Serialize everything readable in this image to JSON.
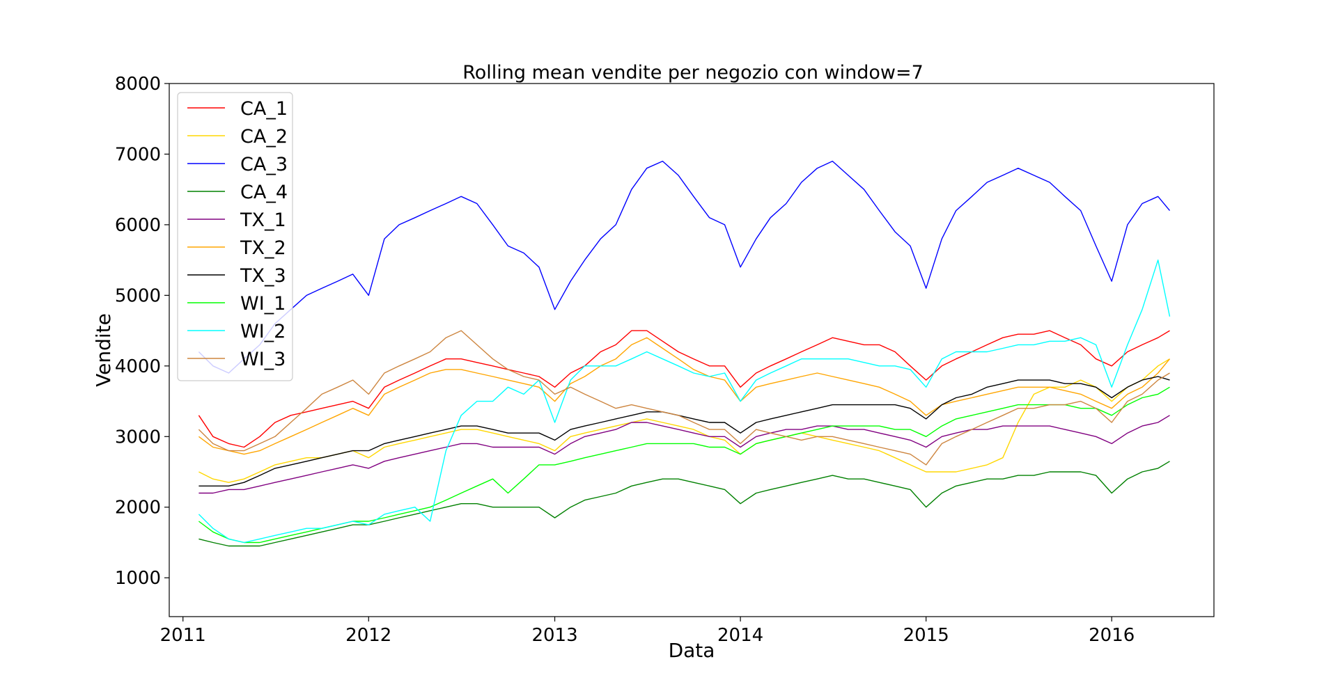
{
  "chart_data": {
    "type": "line",
    "title": "Rolling mean vendite per negozio con window=7",
    "xlabel": "Data",
    "ylabel": "Vendite",
    "xlim": [
      "2010-12-05",
      "2016-07-20"
    ],
    "ylim": [
      450,
      8000
    ],
    "x_ticks": [
      "2011",
      "2012",
      "2013",
      "2014",
      "2015",
      "2016"
    ],
    "y_ticks": [
      1000,
      2000,
      3000,
      4000,
      5000,
      6000,
      7000,
      8000
    ],
    "legend_position": "upper-left",
    "grid": false,
    "x_dates": [
      "2011-02-01",
      "2011-03-01",
      "2011-04-01",
      "2011-05-01",
      "2011-06-01",
      "2011-07-01",
      "2011-08-01",
      "2011-09-01",
      "2011-10-01",
      "2011-11-01",
      "2011-12-01",
      "2012-01-01",
      "2012-02-01",
      "2012-03-01",
      "2012-04-01",
      "2012-05-01",
      "2012-06-01",
      "2012-07-01",
      "2012-08-01",
      "2012-09-01",
      "2012-10-01",
      "2012-11-01",
      "2012-12-01",
      "2013-01-01",
      "2013-02-01",
      "2013-03-01",
      "2013-04-01",
      "2013-05-01",
      "2013-06-01",
      "2013-07-01",
      "2013-08-01",
      "2013-09-01",
      "2013-10-01",
      "2013-11-01",
      "2013-12-01",
      "2014-01-01",
      "2014-02-01",
      "2014-03-01",
      "2014-04-01",
      "2014-05-01",
      "2014-06-01",
      "2014-07-01",
      "2014-08-01",
      "2014-09-01",
      "2014-10-01",
      "2014-11-01",
      "2014-12-01",
      "2015-01-01",
      "2015-02-01",
      "2015-03-01",
      "2015-04-01",
      "2015-05-01",
      "2015-06-01",
      "2015-07-01",
      "2015-08-01",
      "2015-09-01",
      "2015-10-01",
      "2015-11-01",
      "2015-12-01",
      "2016-01-01",
      "2016-02-01",
      "2016-03-01",
      "2016-04-01",
      "2016-04-24"
    ],
    "series": [
      {
        "name": "CA_1",
        "color": "#ff0000",
        "values": [
          3300,
          3000,
          2900,
          2850,
          3000,
          3200,
          3300,
          3350,
          3400,
          3450,
          3500,
          3400,
          3700,
          3800,
          3900,
          4000,
          4100,
          4100,
          4050,
          4000,
          3950,
          3900,
          3850,
          3700,
          3900,
          4000,
          4200,
          4300,
          4500,
          4500,
          4350,
          4200,
          4100,
          4000,
          4000,
          3700,
          3900,
          4000,
          4100,
          4200,
          4300,
          4400,
          4350,
          4300,
          4300,
          4200,
          4000,
          3800,
          4000,
          4100,
          4200,
          4300,
          4400,
          4450,
          4450,
          4500,
          4400,
          4300,
          4100,
          4000,
          4200,
          4300,
          4400,
          4500
        ]
      },
      {
        "name": "CA_2",
        "color": "#ffd700",
        "values": [
          2500,
          2400,
          2350,
          2400,
          2500,
          2600,
          2650,
          2700,
          2700,
          2750,
          2800,
          2700,
          2850,
          2900,
          2950,
          3000,
          3050,
          3100,
          3100,
          3050,
          3000,
          2950,
          2900,
          2800,
          3000,
          3050,
          3100,
          3150,
          3200,
          3250,
          3200,
          3150,
          3100,
          3000,
          2950,
          2750,
          2900,
          2950,
          3000,
          3050,
          3000,
          2950,
          2900,
          2850,
          2800,
          2700,
          2600,
          2500,
          2500,
          2500,
          2550,
          2600,
          2700,
          3200,
          3600,
          3700,
          3700,
          3800,
          3700,
          3500,
          3700,
          3800,
          4000,
          4100
        ]
      },
      {
        "name": "CA_3",
        "color": "#0000ff",
        "values": [
          4200,
          4000,
          3900,
          4100,
          4300,
          4600,
          4800,
          5000,
          5100,
          5200,
          5300,
          5000,
          5800,
          6000,
          6100,
          6200,
          6300,
          6400,
          6300,
          6000,
          5700,
          5600,
          5400,
          4800,
          5200,
          5500,
          5800,
          6000,
          6500,
          6800,
          6900,
          6700,
          6400,
          6100,
          6000,
          5400,
          5800,
          6100,
          6300,
          6600,
          6800,
          6900,
          6700,
          6500,
          6200,
          5900,
          5700,
          5100,
          5800,
          6200,
          6400,
          6600,
          6700,
          6800,
          6700,
          6600,
          6400,
          6200,
          5700,
          5200,
          6000,
          6300,
          6400,
          6200
        ]
      },
      {
        "name": "CA_4",
        "color": "#008000",
        "values": [
          1550,
          1500,
          1450,
          1450,
          1450,
          1500,
          1550,
          1600,
          1650,
          1700,
          1750,
          1750,
          1800,
          1850,
          1900,
          1950,
          2000,
          2050,
          2050,
          2000,
          2000,
          2000,
          2000,
          1850,
          2000,
          2100,
          2150,
          2200,
          2300,
          2350,
          2400,
          2400,
          2350,
          2300,
          2250,
          2050,
          2200,
          2250,
          2300,
          2350,
          2400,
          2450,
          2400,
          2400,
          2350,
          2300,
          2250,
          2000,
          2200,
          2300,
          2350,
          2400,
          2400,
          2450,
          2450,
          2500,
          2500,
          2500,
          2450,
          2200,
          2400,
          2500,
          2550,
          2650
        ]
      },
      {
        "name": "TX_1",
        "color": "#800080",
        "values": [
          2200,
          2200,
          2250,
          2250,
          2300,
          2350,
          2400,
          2450,
          2500,
          2550,
          2600,
          2550,
          2650,
          2700,
          2750,
          2800,
          2850,
          2900,
          2900,
          2850,
          2850,
          2850,
          2850,
          2750,
          2900,
          3000,
          3050,
          3100,
          3200,
          3200,
          3150,
          3100,
          3050,
          3000,
          3000,
          2850,
          3000,
          3050,
          3100,
          3100,
          3150,
          3150,
          3100,
          3100,
          3050,
          3000,
          2950,
          2850,
          3000,
          3050,
          3100,
          3100,
          3150,
          3150,
          3150,
          3150,
          3100,
          3050,
          3000,
          2900,
          3050,
          3150,
          3200,
          3300
        ]
      },
      {
        "name": "TX_2",
        "color": "#ffa500",
        "values": [
          3000,
          2850,
          2800,
          2750,
          2800,
          2900,
          3000,
          3100,
          3200,
          3300,
          3400,
          3300,
          3600,
          3700,
          3800,
          3900,
          3950,
          3950,
          3900,
          3850,
          3800,
          3750,
          3700,
          3500,
          3750,
          3850,
          4000,
          4100,
          4300,
          4400,
          4250,
          4100,
          3950,
          3850,
          3800,
          3500,
          3700,
          3750,
          3800,
          3850,
          3900,
          3850,
          3800,
          3750,
          3700,
          3600,
          3500,
          3300,
          3450,
          3500,
          3550,
          3600,
          3650,
          3700,
          3700,
          3700,
          3650,
          3600,
          3500,
          3400,
          3600,
          3700,
          3900,
          4100
        ]
      },
      {
        "name": "TX_3",
        "color": "#000000",
        "values": [
          2300,
          2300,
          2300,
          2350,
          2450,
          2550,
          2600,
          2650,
          2700,
          2750,
          2800,
          2800,
          2900,
          2950,
          3000,
          3050,
          3100,
          3150,
          3150,
          3100,
          3050,
          3050,
          3050,
          2950,
          3100,
          3150,
          3200,
          3250,
          3300,
          3350,
          3350,
          3300,
          3250,
          3200,
          3200,
          3050,
          3200,
          3250,
          3300,
          3350,
          3400,
          3450,
          3450,
          3450,
          3450,
          3450,
          3400,
          3250,
          3450,
          3550,
          3600,
          3700,
          3750,
          3800,
          3800,
          3800,
          3750,
          3750,
          3700,
          3550,
          3700,
          3800,
          3850,
          3800
        ]
      },
      {
        "name": "WI_1",
        "color": "#00ff00",
        "values": [
          1800,
          1650,
          1550,
          1500,
          1500,
          1550,
          1600,
          1650,
          1700,
          1750,
          1800,
          1800,
          1850,
          1900,
          1950,
          2000,
          2100,
          2200,
          2300,
          2400,
          2200,
          2400,
          2600,
          2600,
          2650,
          2700,
          2750,
          2800,
          2850,
          2900,
          2900,
          2900,
          2900,
          2850,
          2850,
          2750,
          2900,
          2950,
          3000,
          3050,
          3100,
          3150,
          3150,
          3150,
          3150,
          3100,
          3100,
          3000,
          3150,
          3250,
          3300,
          3350,
          3400,
          3450,
          3450,
          3450,
          3450,
          3400,
          3400,
          3300,
          3450,
          3550,
          3600,
          3700
        ]
      },
      {
        "name": "WI_2",
        "color": "#00ffff",
        "values": [
          1900,
          1700,
          1550,
          1500,
          1550,
          1600,
          1650,
          1700,
          1700,
          1750,
          1800,
          1750,
          1900,
          1950,
          2000,
          1800,
          2800,
          3300,
          3500,
          3500,
          3700,
          3600,
          3800,
          3200,
          3800,
          4000,
          4000,
          4000,
          4100,
          4200,
          4100,
          4000,
          3900,
          3850,
          3900,
          3500,
          3800,
          3900,
          4000,
          4100,
          4100,
          4100,
          4100,
          4050,
          4000,
          4000,
          3950,
          3700,
          4100,
          4200,
          4200,
          4200,
          4250,
          4300,
          4300,
          4350,
          4350,
          4400,
          4300,
          3700,
          4300,
          4800,
          5500,
          4700
        ]
      },
      {
        "name": "WI_3",
        "color": "#cd853f",
        "values": [
          3100,
          2900,
          2800,
          2800,
          2900,
          3000,
          3200,
          3400,
          3600,
          3700,
          3800,
          3600,
          3900,
          4000,
          4100,
          4200,
          4400,
          4500,
          4300,
          4100,
          3950,
          3850,
          3800,
          3600,
          3700,
          3600,
          3500,
          3400,
          3450,
          3400,
          3350,
          3300,
          3200,
          3100,
          3100,
          2900,
          3100,
          3050,
          3000,
          2950,
          3000,
          3000,
          2950,
          2900,
          2850,
          2800,
          2750,
          2600,
          2900,
          3000,
          3100,
          3200,
          3300,
          3400,
          3400,
          3450,
          3450,
          3500,
          3400,
          3200,
          3500,
          3600,
          3800,
          3900
        ]
      }
    ]
  }
}
